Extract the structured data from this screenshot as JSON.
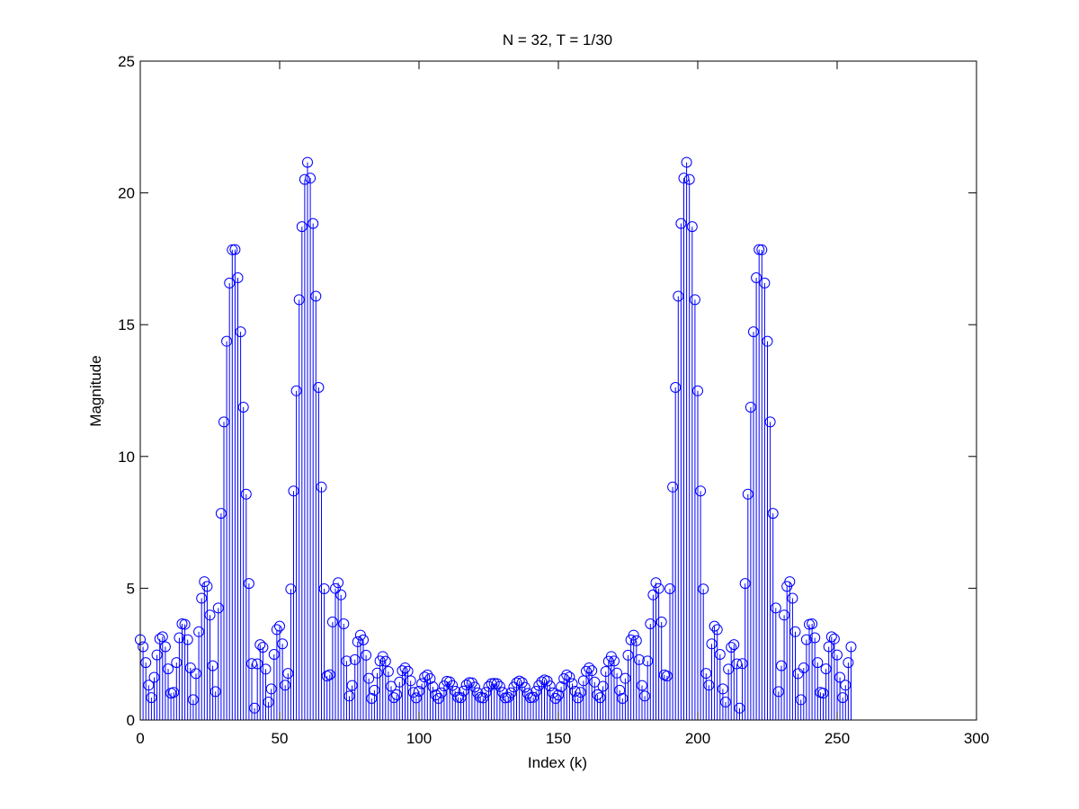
{
  "chart_data": {
    "type": "stem",
    "title": "N = 32, T = 1/30",
    "xlabel": "Index (k)",
    "ylabel": "Magnitude",
    "xlim": [
      0,
      300
    ],
    "ylim": [
      0,
      25
    ],
    "xticks": [
      0,
      50,
      100,
      150,
      200,
      250,
      300
    ],
    "yticks": [
      0,
      5,
      10,
      15,
      20,
      25
    ],
    "grid": false,
    "marker": "circle",
    "color": "#0000ff",
    "x_start": 0,
    "x_step": 1,
    "values": [
      3.05,
      2.78,
      2.18,
      1.32,
      0.85,
      1.62,
      2.47,
      3.08,
      3.16,
      2.78,
      1.94,
      1.02,
      1.05,
      2.18,
      3.12,
      3.65,
      3.63,
      3.05,
      1.98,
      0.77,
      1.76,
      3.35,
      4.62,
      5.25,
      5.07,
      3.98,
      2.06,
      1.08,
      4.25,
      7.84,
      11.31,
      14.37,
      16.58,
      17.84,
      17.85,
      16.78,
      14.73,
      11.87,
      8.57,
      5.18,
      2.14,
      0.45,
      2.13,
      2.86,
      2.76,
      1.93,
      0.68,
      1.18,
      2.49,
      3.43,
      3.56,
      2.89,
      1.32,
      1.77,
      4.97,
      8.69,
      12.49,
      15.95,
      18.72,
      20.51,
      21.16,
      20.56,
      18.84,
      16.08,
      12.62,
      8.84,
      4.98,
      1.67,
      1.72,
      3.72,
      4.99,
      5.21,
      4.75,
      3.65,
      2.24,
      0.91,
      1.31,
      2.29,
      2.97,
      3.22,
      3.04,
      2.46,
      1.58,
      0.82,
      1.13,
      1.78,
      2.24,
      2.41,
      2.23,
      1.84,
      1.28,
      0.85,
      0.96,
      1.44,
      1.87,
      1.98,
      1.85,
      1.49,
      1.05,
      0.84,
      1.09,
      1.38,
      1.63,
      1.71,
      1.57,
      1.26,
      0.95,
      0.82,
      1.03,
      1.29,
      1.47,
      1.45,
      1.31,
      1.09,
      0.86,
      0.85,
      1.1,
      1.33,
      1.42,
      1.41,
      1.25,
      1.03,
      0.86,
      0.84,
      1.05,
      1.27,
      1.38,
      1.39,
      1.38,
      1.27,
      1.05,
      0.84,
      0.86,
      1.03,
      1.25,
      1.41,
      1.48,
      1.42,
      1.24,
      1.01,
      0.85,
      0.86,
      1.09,
      1.31,
      1.45,
      1.52,
      1.48,
      1.29,
      1.03,
      0.82,
      0.95,
      1.26,
      1.57,
      1.71,
      1.63,
      1.38,
      1.09,
      0.84,
      1.05,
      1.49,
      1.85,
      1.98,
      1.87,
      1.44,
      0.96,
      0.85,
      1.28,
      1.84,
      2.23,
      2.41,
      2.24,
      1.78,
      1.13,
      0.82,
      1.58,
      2.46,
      3.04,
      3.22,
      3.01,
      2.29,
      1.31,
      0.91,
      2.24,
      3.65,
      4.75,
      5.21,
      4.99,
      3.72,
      1.71,
      1.67,
      4.98,
      8.84,
      12.62,
      16.08,
      18.84,
      20.56,
      21.16,
      20.51,
      18.72,
      15.95,
      12.49,
      8.69,
      4.97,
      1.77,
      1.32,
      2.89,
      3.56,
      3.43,
      2.49,
      1.18,
      0.68,
      1.93,
      2.76,
      2.86,
      2.13,
      0.45,
      2.14,
      5.18,
      8.57,
      11.87,
      14.73,
      16.78,
      17.85,
      17.84,
      16.58,
      14.37,
      11.31,
      7.84,
      4.25,
      1.08,
      2.06,
      3.98,
      5.07,
      5.25,
      4.62,
      3.35,
      1.76,
      0.77,
      1.98,
      3.05,
      3.63,
      3.65,
      3.12,
      2.18,
      1.05,
      1.02,
      1.94,
      2.78,
      3.16,
      3.08,
      2.47,
      1.62,
      0.85,
      1.32,
      2.18,
      2.78
    ]
  }
}
